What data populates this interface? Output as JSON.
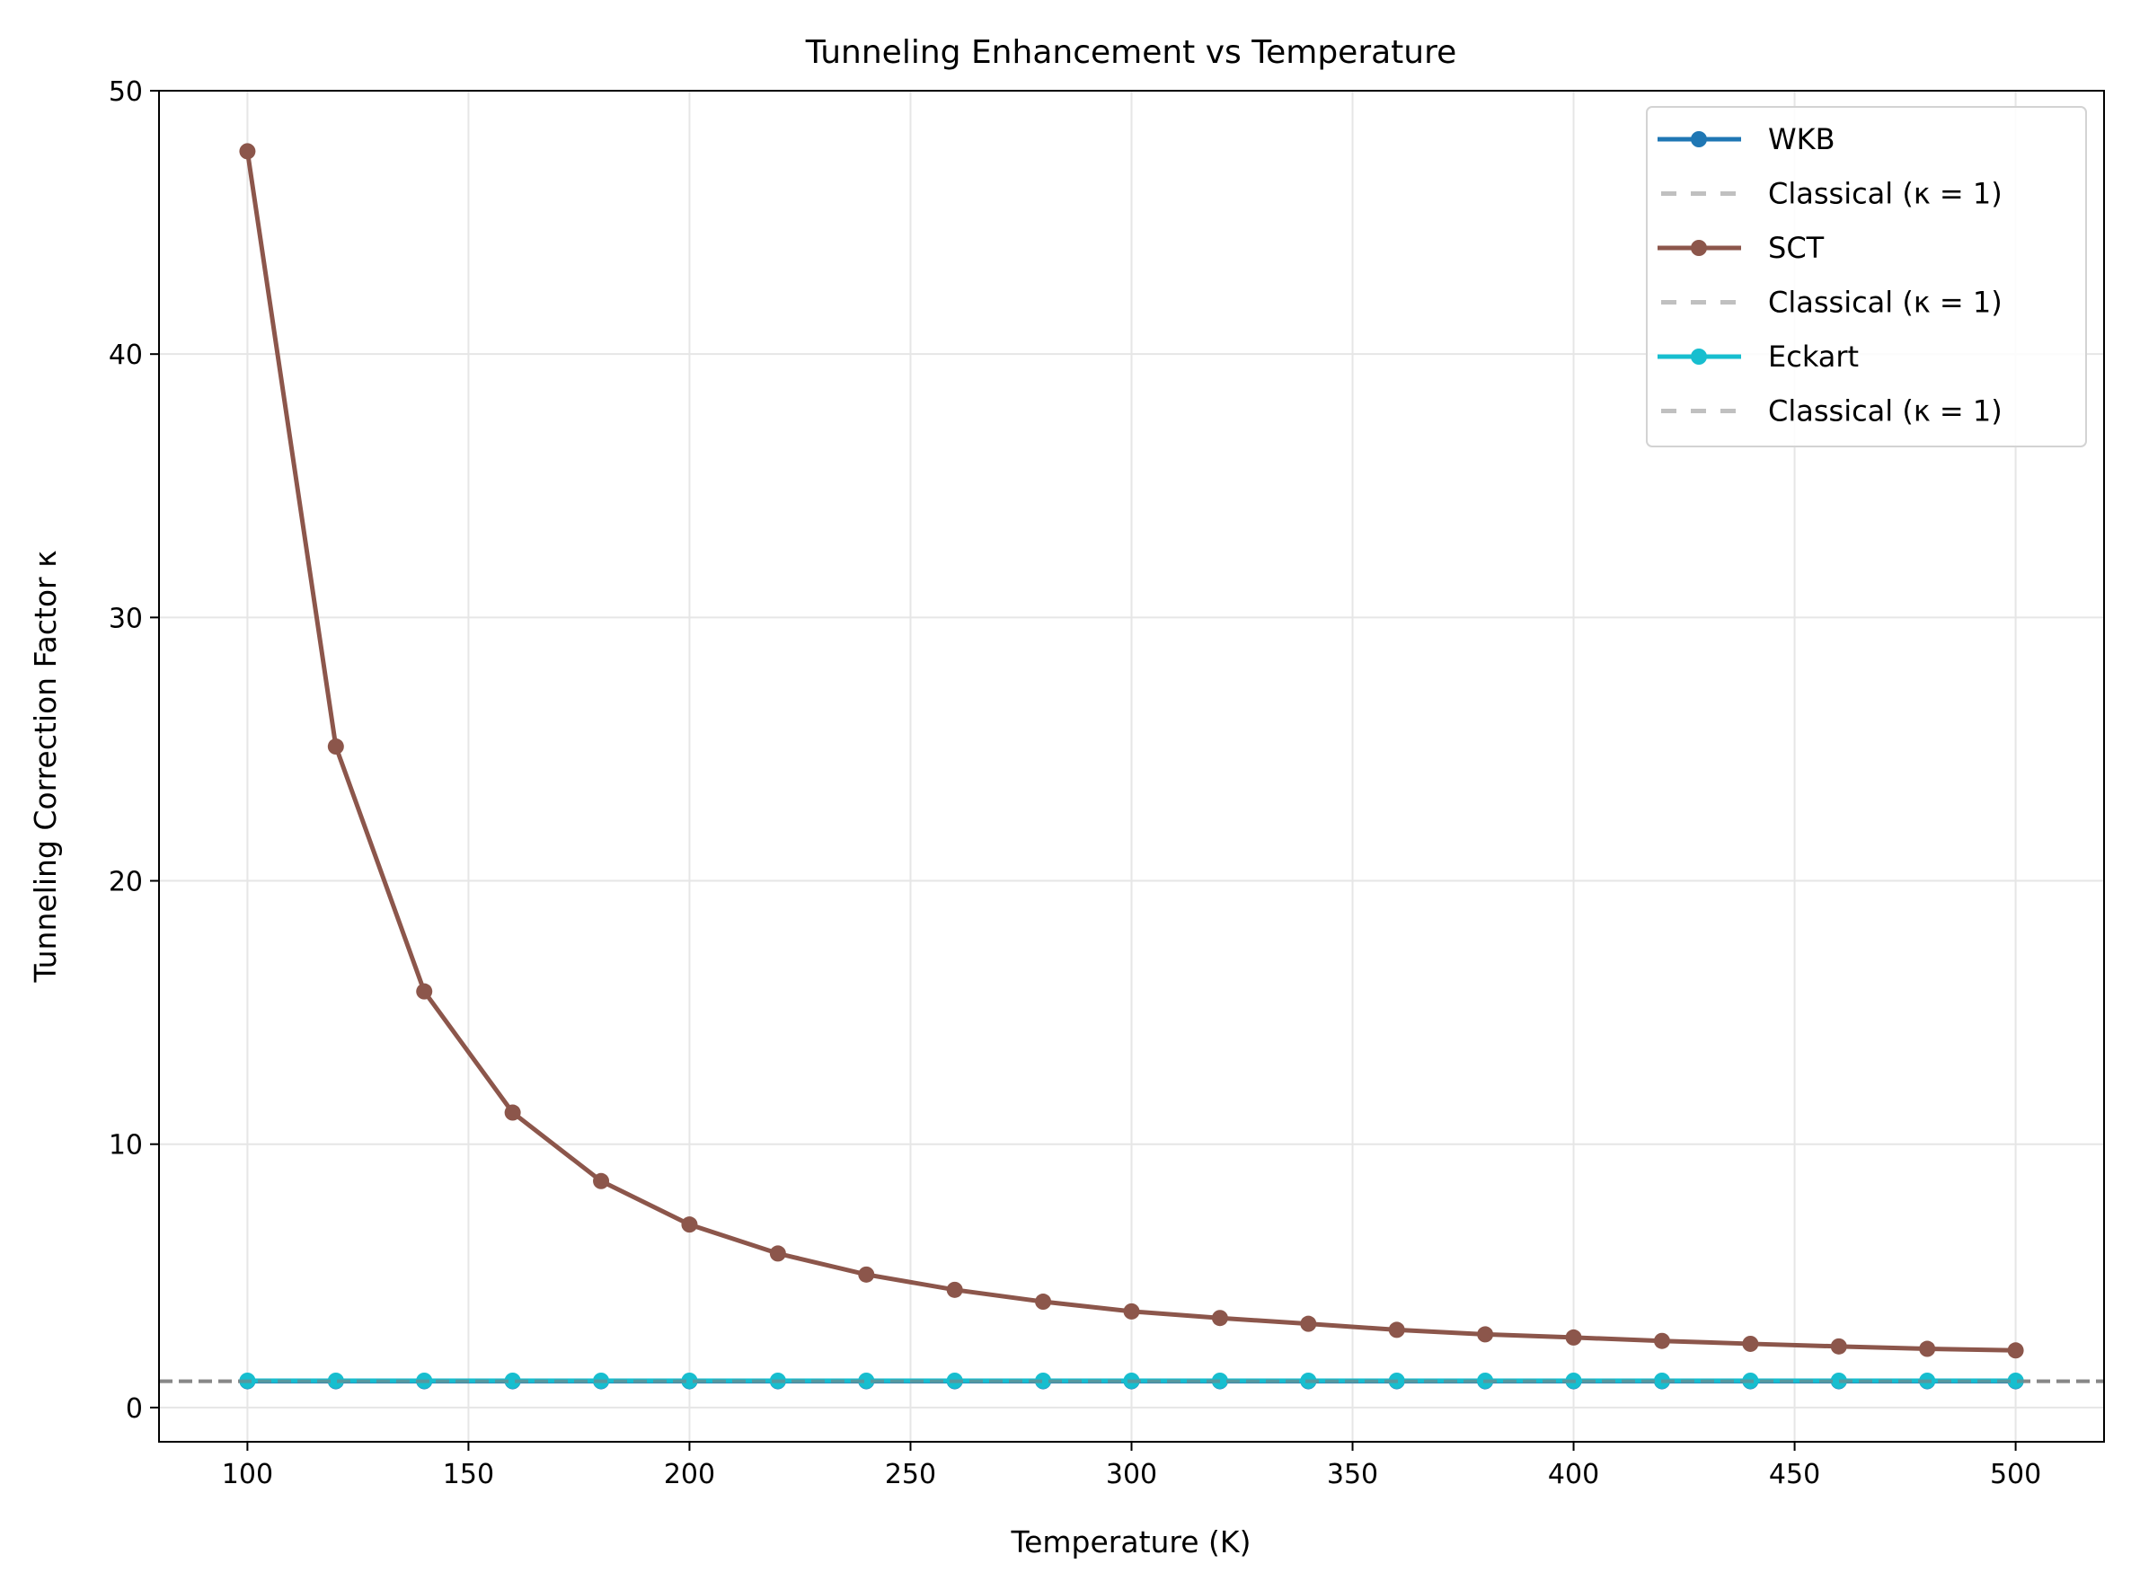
{
  "chart_data": {
    "type": "line",
    "title": "Tunneling Enhancement vs Temperature",
    "xlabel": "Temperature (K)",
    "ylabel": "Tunneling Correction Factor κ",
    "xlim": [
      80,
      520
    ],
    "ylim": [
      -1.3,
      50
    ],
    "xticks": [
      100,
      150,
      200,
      250,
      300,
      350,
      400,
      450,
      500
    ],
    "yticks": [
      0,
      10,
      20,
      30,
      40,
      50
    ],
    "grid": true,
    "legend_position": "top-right",
    "x": [
      100,
      120,
      140,
      160,
      180,
      200,
      220,
      240,
      260,
      280,
      300,
      320,
      340,
      360,
      380,
      400,
      420,
      440,
      460,
      480,
      500
    ],
    "series": [
      {
        "name": "WKB",
        "color": "#1f77b4",
        "style": "solid-marker",
        "values": [
          1,
          1,
          1,
          1,
          1,
          1,
          1,
          1,
          1,
          1,
          1,
          1,
          1,
          1,
          1,
          1,
          1,
          1,
          1,
          1,
          1
        ]
      },
      {
        "name": "Classical (κ = 1)",
        "color": "#808080",
        "style": "dashed",
        "constant": 1
      },
      {
        "name": "SCT",
        "color": "#8c564b",
        "style": "solid-marker",
        "values": [
          47.7,
          25.1,
          15.8,
          11.2,
          8.6,
          6.95,
          5.85,
          5.05,
          4.47,
          4.02,
          3.65,
          3.4,
          3.18,
          2.95,
          2.78,
          2.66,
          2.53,
          2.42,
          2.32,
          2.23,
          2.17
        ]
      },
      {
        "name": "Classical (κ = 1)",
        "color": "#808080",
        "style": "dashed",
        "constant": 1
      },
      {
        "name": "Eckart",
        "color": "#17becf",
        "style": "solid-marker",
        "values": [
          1.02,
          1.02,
          1.02,
          1.02,
          1.02,
          1.02,
          1.02,
          1.02,
          1.02,
          1.02,
          1.02,
          1.02,
          1.02,
          1.02,
          1.02,
          1.02,
          1.02,
          1.02,
          1.02,
          1.02,
          1.02
        ]
      },
      {
        "name": "Classical (κ = 1)",
        "color": "#808080",
        "style": "dashed",
        "constant": 1
      }
    ]
  }
}
